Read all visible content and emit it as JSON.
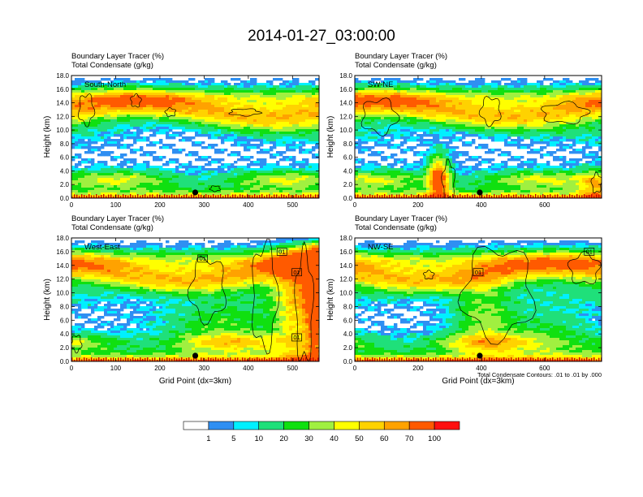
{
  "title": "2014-01-27_03:00:00",
  "chart_data": {
    "type": "heatmap",
    "panels": [
      {
        "name": "South-North",
        "subtitle_1": "Boundary Layer Tracer   (%)",
        "subtitle_2": "Total Condensate   (g/kg)",
        "ylabel": "Height (km)",
        "xlabel": "",
        "xlim": [
          0,
          560
        ],
        "xticks": [
          "0",
          "100",
          "200",
          "300",
          "400",
          "500"
        ],
        "xtick_values": [
          0,
          100,
          200,
          300,
          400,
          500
        ],
        "ylim": [
          0,
          18
        ],
        "yticks": [
          "0.0",
          "2.0",
          "4.0",
          "6.0",
          "8.0",
          "10.0",
          "12.0",
          "14.0",
          "16.0",
          "18.0"
        ],
        "marker_x": 280,
        "contour_labels": []
      },
      {
        "name": "SW-NE",
        "subtitle_1": "Boundary Layer Tracer   (%)",
        "subtitle_2": "Total Condensate   (g/kg)",
        "ylabel": "Height (km)",
        "xlabel": "",
        "xlim": [
          0,
          780
        ],
        "xticks": [
          "0",
          "200",
          "400",
          "600"
        ],
        "xtick_values": [
          0,
          200,
          400,
          600
        ],
        "ylim": [
          0,
          18
        ],
        "yticks": [
          "0.0",
          "2.0",
          "4.0",
          "6.0",
          "8.0",
          "10.0",
          "12.0",
          "14.0",
          "16.0",
          "18.0"
        ],
        "marker_x": 395,
        "contour_labels": []
      },
      {
        "name": "West-East",
        "subtitle_1": "Boundary Layer Tracer   (%)",
        "subtitle_2": "Total Condensate   (g/kg)",
        "ylabel": "Height (km)",
        "xlabel": "Grid Point (dx=3km)",
        "xlim": [
          0,
          560
        ],
        "xticks": [
          "0",
          "100",
          "200",
          "300",
          "400",
          "500"
        ],
        "xtick_values": [
          0,
          100,
          200,
          300,
          400,
          500
        ],
        "ylim": [
          0,
          18
        ],
        "yticks": [
          "0.0",
          "2.0",
          "4.0",
          "6.0",
          "8.0",
          "10.0",
          "12.0",
          "14.0",
          "16.0",
          "18.0"
        ],
        "marker_x": 280,
        "contour_labels": [
          "01",
          "01",
          "01",
          "01"
        ]
      },
      {
        "name": "NW-SE",
        "subtitle_1": "Boundary Layer Tracer   (%)",
        "subtitle_2": "Total Condensate   (g/kg)",
        "ylabel": "Height (km)",
        "xlabel": "Grid Point (dx=3km)",
        "xlim": [
          0,
          780
        ],
        "xticks": [
          "0",
          "200",
          "400",
          "600"
        ],
        "xtick_values": [
          0,
          200,
          400,
          600
        ],
        "ylim": [
          0,
          18
        ],
        "yticks": [
          "0.0",
          "2.0",
          "4.0",
          "6.0",
          "8.0",
          "10.0",
          "12.0",
          "14.0",
          "16.0",
          "18.0"
        ],
        "marker_x": 395,
        "contour_labels": [
          "01",
          "01"
        ]
      }
    ],
    "contour_note": "Total Condensate Contours: .01 to .01 by .000",
    "colorbar": {
      "labels": [
        "1",
        "5",
        "10",
        "20",
        "30",
        "40",
        "50",
        "60",
        "70",
        "100"
      ],
      "colors": [
        "#ffffff",
        "#2f8ff2",
        "#00f0ff",
        "#1fe07a",
        "#10e010",
        "#a0f040",
        "#ffff00",
        "#ffd200",
        "#ffa200",
        "#ff5a00",
        "#ff1010"
      ]
    }
  }
}
